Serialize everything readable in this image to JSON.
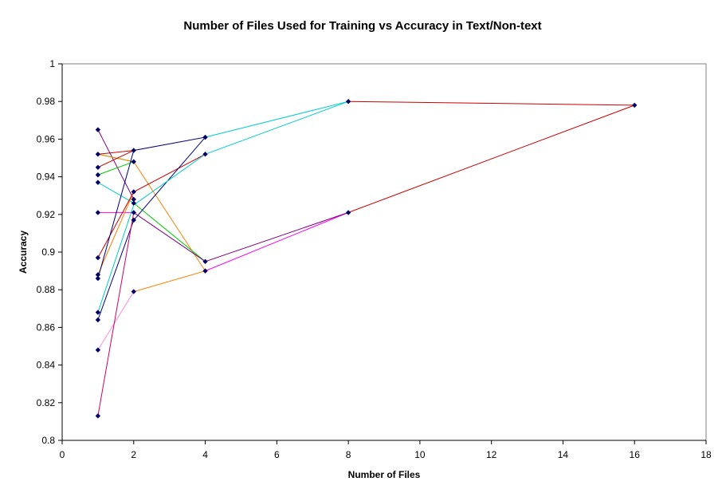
{
  "chart_data": {
    "type": "scatter",
    "title": "Number of Files Used for Training vs Accuracy in Text/Non-text",
    "xlabel": "Number of Files",
    "ylabel": "Accuracy",
    "xlim": [
      0,
      18
    ],
    "ylim": [
      0.8,
      1
    ],
    "xticks": [
      0,
      2,
      4,
      6,
      8,
      10,
      12,
      14,
      16,
      18
    ],
    "yticks": [
      0.8,
      0.82,
      0.84,
      0.86,
      0.88,
      0.9,
      0.92,
      0.94,
      0.96,
      0.98,
      1
    ],
    "grid": false,
    "legend": "none",
    "marker_color": "#000066",
    "series": [
      {
        "color": "#800080",
        "points": [
          [
            1,
            0.965
          ],
          [
            2,
            0.928
          ]
        ]
      },
      {
        "color": "#00cc00",
        "points": [
          [
            1,
            0.952
          ],
          [
            2,
            0.948
          ]
        ]
      },
      {
        "color": "#ff8000",
        "points": [
          [
            1,
            0.952
          ],
          [
            2,
            0.948
          ],
          [
            4,
            0.89
          ]
        ]
      },
      {
        "color": "#00cc00",
        "points": [
          [
            1,
            0.941
          ],
          [
            2,
            0.948
          ]
        ]
      },
      {
        "color": "#cc0000",
        "points": [
          [
            1,
            0.945
          ],
          [
            2,
            0.954
          ]
        ]
      },
      {
        "color": "#cc0000",
        "points": [
          [
            1,
            0.952
          ],
          [
            2,
            0.954
          ]
        ]
      },
      {
        "color": "#00cccc",
        "points": [
          [
            1,
            0.937
          ],
          [
            2,
            0.926
          ]
        ]
      },
      {
        "color": "#00cc00",
        "points": [
          [
            2,
            0.926
          ],
          [
            4,
            0.895
          ]
        ]
      },
      {
        "color": "#ff00ff",
        "points": [
          [
            1,
            0.921
          ],
          [
            2,
            0.921
          ]
        ]
      },
      {
        "color": "#ff8000",
        "points": [
          [
            1,
            0.888
          ],
          [
            2,
            0.932
          ]
        ]
      },
      {
        "color": "#cc0000",
        "points": [
          [
            1,
            0.897
          ],
          [
            2,
            0.932
          ],
          [
            4,
            0.952
          ]
        ]
      },
      {
        "color": "#000080",
        "points": [
          [
            1,
            0.886
          ],
          [
            2,
            0.954
          ],
          [
            4,
            0.961
          ]
        ]
      },
      {
        "color": "#000080",
        "points": [
          [
            1,
            0.864
          ],
          [
            2,
            0.917
          ]
        ]
      },
      {
        "color": "#000080",
        "points": [
          [
            2,
            0.917
          ],
          [
            4,
            0.961
          ]
        ]
      },
      {
        "color": "#00cccc",
        "points": [
          [
            1,
            0.868
          ],
          [
            2,
            0.925
          ],
          [
            4,
            0.952
          ],
          [
            8,
            0.98
          ]
        ]
      },
      {
        "color": "#00cccc",
        "points": [
          [
            4,
            0.961
          ],
          [
            8,
            0.98
          ]
        ]
      },
      {
        "color": "#cc0000",
        "points": [
          [
            8,
            0.98
          ],
          [
            16,
            0.978
          ]
        ]
      },
      {
        "color": "#ff88dd",
        "points": [
          [
            1,
            0.848
          ],
          [
            2,
            0.879
          ]
        ]
      },
      {
        "color": "#ff8000",
        "points": [
          [
            2,
            0.879
          ],
          [
            4,
            0.89
          ]
        ]
      },
      {
        "color": "#ff00ff",
        "points": [
          [
            4,
            0.89
          ],
          [
            8,
            0.921
          ]
        ]
      },
      {
        "color": "#cc0066",
        "points": [
          [
            1,
            0.813
          ],
          [
            2,
            0.921
          ]
        ]
      },
      {
        "color": "#800080",
        "points": [
          [
            2,
            0.921
          ],
          [
            4,
            0.895
          ],
          [
            8,
            0.921
          ]
        ]
      },
      {
        "color": "#cc0000",
        "points": [
          [
            8,
            0.921
          ],
          [
            16,
            0.978
          ]
        ]
      }
    ],
    "markers": [
      [
        1,
        0.965
      ],
      [
        1,
        0.952
      ],
      [
        1,
        0.945
      ],
      [
        1,
        0.941
      ],
      [
        1,
        0.937
      ],
      [
        1,
        0.921
      ],
      [
        1,
        0.897
      ],
      [
        1,
        0.888
      ],
      [
        1,
        0.886
      ],
      [
        1,
        0.868
      ],
      [
        1,
        0.864
      ],
      [
        1,
        0.848
      ],
      [
        1,
        0.813
      ],
      [
        2,
        0.954
      ],
      [
        2,
        0.948
      ],
      [
        2,
        0.932
      ],
      [
        2,
        0.928
      ],
      [
        2,
        0.926
      ],
      [
        2,
        0.921
      ],
      [
        2,
        0.917
      ],
      [
        2,
        0.879
      ],
      [
        4,
        0.961
      ],
      [
        4,
        0.952
      ],
      [
        4,
        0.895
      ],
      [
        4,
        0.89
      ],
      [
        8,
        0.98
      ],
      [
        8,
        0.921
      ],
      [
        16,
        0.978
      ]
    ]
  }
}
